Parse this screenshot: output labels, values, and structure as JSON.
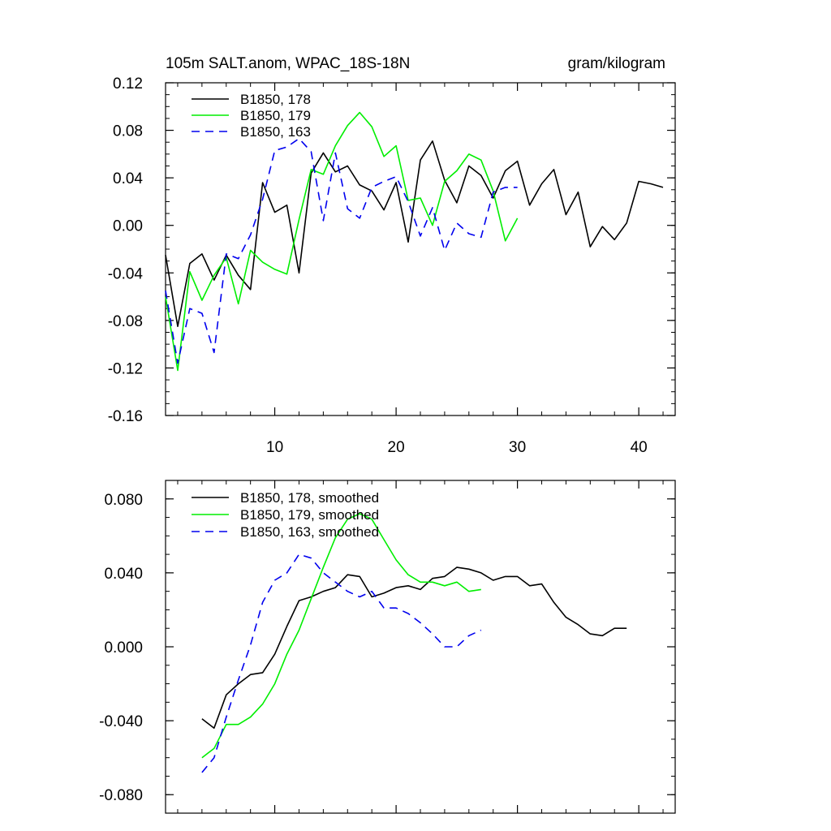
{
  "chart_data": [
    {
      "type": "line",
      "title_left": "105m SALT.anom, WPAC_18S-18N",
      "title_right": "gram/kilogram",
      "xlim": [
        1,
        43
      ],
      "ylim": [
        -0.16,
        0.12
      ],
      "x_ticks": [
        10,
        20,
        30,
        40
      ],
      "x_tick_labels": [
        "10",
        "20",
        "30",
        "40"
      ],
      "y_ticks": [
        0.12,
        0.08,
        0.04,
        0.0,
        -0.04,
        -0.08,
        -0.12,
        -0.16
      ],
      "y_tick_labels": [
        "0.12",
        "0.08",
        "0.04",
        "0.00",
        "-0.04",
        "-0.08",
        "-0.12",
        "-0.16"
      ],
      "grid": false,
      "legend_position": "top-left",
      "series": [
        {
          "name": "B1850, 178",
          "color": "#000000",
          "dash": "solid",
          "x": [
            1,
            2,
            3,
            4,
            5,
            6,
            7,
            8,
            9,
            10,
            11,
            12,
            13,
            14,
            15,
            16,
            17,
            18,
            19,
            20,
            21,
            22,
            23,
            24,
            25,
            26,
            27,
            28,
            29,
            30,
            31,
            32,
            33,
            34,
            35,
            36,
            37,
            38,
            39,
            40,
            41,
            42
          ],
          "values": [
            -0.025,
            -0.085,
            -0.032,
            -0.024,
            -0.046,
            -0.025,
            -0.042,
            -0.054,
            0.036,
            0.011,
            0.017,
            -0.04,
            0.044,
            0.061,
            0.045,
            0.05,
            0.034,
            0.029,
            0.013,
            0.036,
            -0.014,
            0.055,
            0.071,
            0.038,
            0.019,
            0.05,
            0.042,
            0.023,
            0.046,
            0.054,
            0.017,
            0.035,
            0.047,
            0.009,
            0.028,
            -0.018,
            -0.001,
            -0.012,
            0.002,
            0.037,
            0.035,
            0.032
          ]
        },
        {
          "name": "B1850, 179",
          "color": "#00ee00",
          "dash": "solid",
          "x": [
            1,
            2,
            3,
            4,
            5,
            6,
            7,
            8,
            9,
            10,
            11,
            12,
            13,
            14,
            15,
            16,
            17,
            18,
            19,
            20,
            21,
            22,
            23,
            24,
            25,
            26,
            27,
            28,
            29,
            30
          ],
          "values": [
            -0.06,
            -0.122,
            -0.039,
            -0.063,
            -0.042,
            -0.027,
            -0.066,
            -0.021,
            -0.031,
            -0.037,
            -0.041,
            0.005,
            0.047,
            0.043,
            0.067,
            0.084,
            0.095,
            0.083,
            0.058,
            0.067,
            0.021,
            0.023,
            0.0,
            0.037,
            0.046,
            0.06,
            0.055,
            0.029,
            -0.013,
            0.006
          ]
        },
        {
          "name": "B1850, 163",
          "color": "#0000ee",
          "dash": "dashed",
          "x": [
            1,
            2,
            3,
            4,
            5,
            6,
            7,
            8,
            9,
            10,
            11,
            12,
            13,
            14,
            15,
            16,
            17,
            18,
            19,
            20,
            21,
            22,
            23,
            24,
            25,
            26,
            27,
            28,
            29,
            30
          ],
          "values": [
            -0.055,
            -0.116,
            -0.07,
            -0.074,
            -0.107,
            -0.024,
            -0.028,
            -0.008,
            0.022,
            0.063,
            0.066,
            0.073,
            0.062,
            0.004,
            0.061,
            0.014,
            0.006,
            0.032,
            0.037,
            0.041,
            0.02,
            -0.009,
            0.015,
            -0.021,
            0.002,
            -0.007,
            -0.01,
            0.028,
            0.032,
            0.032
          ]
        }
      ]
    },
    {
      "type": "line",
      "xlim": [
        1,
        43
      ],
      "ylim": [
        -0.09,
        0.09
      ],
      "x_ticks": [
        10,
        20,
        30,
        40
      ],
      "y_ticks": [
        0.08,
        0.04,
        0.0,
        -0.04,
        -0.08
      ],
      "y_tick_labels": [
        "0.080",
        "0.040",
        "0.000",
        "-0.040",
        "-0.080"
      ],
      "grid": false,
      "legend_position": "top-left",
      "series": [
        {
          "name": "B1850, 178, smoothed",
          "color": "#000000",
          "dash": "solid",
          "x": [
            4,
            5,
            6,
            7,
            8,
            9,
            10,
            11,
            12,
            13,
            14,
            15,
            16,
            17,
            18,
            19,
            20,
            21,
            22,
            23,
            24,
            25,
            26,
            27,
            28,
            29,
            30,
            31,
            32,
            33,
            34,
            35,
            36,
            37,
            38,
            39
          ],
          "values": [
            -0.039,
            -0.044,
            -0.026,
            -0.02,
            -0.015,
            -0.014,
            -0.004,
            0.011,
            0.025,
            0.027,
            0.03,
            0.032,
            0.039,
            0.038,
            0.027,
            0.029,
            0.032,
            0.033,
            0.031,
            0.037,
            0.038,
            0.043,
            0.042,
            0.04,
            0.036,
            0.038,
            0.038,
            0.033,
            0.034,
            0.024,
            0.016,
            0.012,
            0.007,
            0.006,
            0.01,
            0.01
          ]
        },
        {
          "name": "B1850, 179, smoothed",
          "color": "#00ee00",
          "dash": "solid",
          "x": [
            4,
            5,
            6,
            7,
            8,
            9,
            10,
            11,
            12,
            13,
            14,
            15,
            16,
            17,
            18,
            19,
            20,
            21,
            22,
            23,
            24,
            25,
            26,
            27
          ],
          "values": [
            -0.06,
            -0.055,
            -0.042,
            -0.042,
            -0.038,
            -0.031,
            -0.02,
            -0.004,
            0.009,
            0.026,
            0.043,
            0.059,
            0.069,
            0.072,
            0.069,
            0.058,
            0.047,
            0.039,
            0.035,
            0.035,
            0.033,
            0.035,
            0.03,
            0.031
          ]
        },
        {
          "name": "B1850, 163, smoothed",
          "color": "#0000ee",
          "dash": "dashed",
          "x": [
            4,
            5,
            6,
            7,
            8,
            9,
            10,
            11,
            12,
            13,
            14,
            15,
            16,
            17,
            18,
            19,
            20,
            21,
            22,
            23,
            24,
            25,
            26,
            27
          ],
          "values": [
            -0.068,
            -0.06,
            -0.038,
            -0.018,
            0.001,
            0.024,
            0.036,
            0.04,
            0.05,
            0.048,
            0.04,
            0.035,
            0.03,
            0.027,
            0.03,
            0.021,
            0.021,
            0.018,
            0.013,
            0.007,
            0.0,
            0.0,
            0.006,
            0.009
          ]
        }
      ]
    }
  ]
}
